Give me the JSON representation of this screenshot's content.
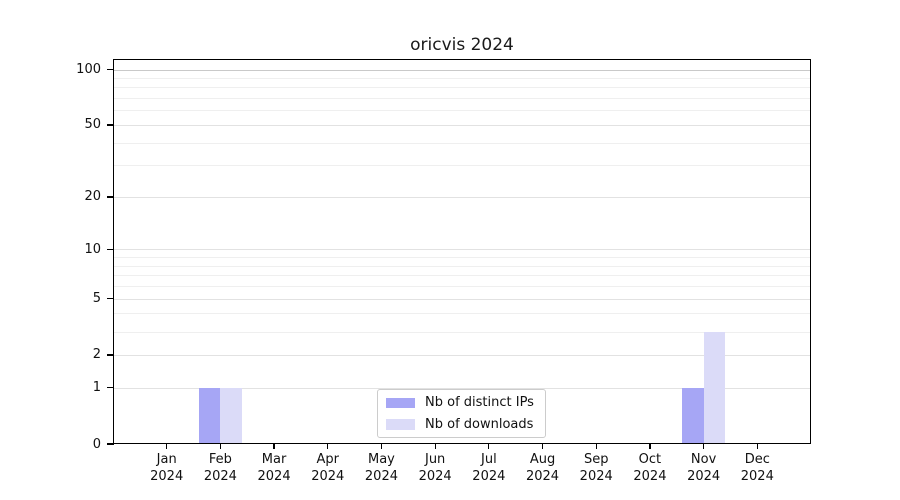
{
  "chart_data": {
    "type": "bar",
    "title": "oricvis 2024",
    "categories": [
      "Jan 2024",
      "Feb 2024",
      "Mar 2024",
      "Apr 2024",
      "May 2024",
      "Jun 2024",
      "Jul 2024",
      "Aug 2024",
      "Sep 2024",
      "Oct 2024",
      "Nov 2024",
      "Dec 2024"
    ],
    "series": [
      {
        "name": "Nb of distinct IPs",
        "color": "#a6a6f5",
        "values": [
          0,
          1,
          0,
          0,
          0,
          0,
          0,
          0,
          0,
          0,
          1,
          0
        ]
      },
      {
        "name": "Nb of downloads",
        "color": "#dbdbf8",
        "values": [
          0,
          1,
          0,
          0,
          0,
          0,
          0,
          0,
          0,
          0,
          3,
          0
        ]
      }
    ],
    "xlabel": "",
    "ylabel": "",
    "yscale": "log1p",
    "ylim": [
      0,
      114
    ],
    "y_major_ticks": [
      0,
      1,
      2,
      5,
      10,
      20,
      50,
      100
    ],
    "y_minor_gridlines": [
      3,
      4,
      6,
      7,
      8,
      9,
      30,
      40,
      60,
      70,
      80,
      90
    ],
    "grid": "horizontal",
    "legend_position": "lower center"
  }
}
